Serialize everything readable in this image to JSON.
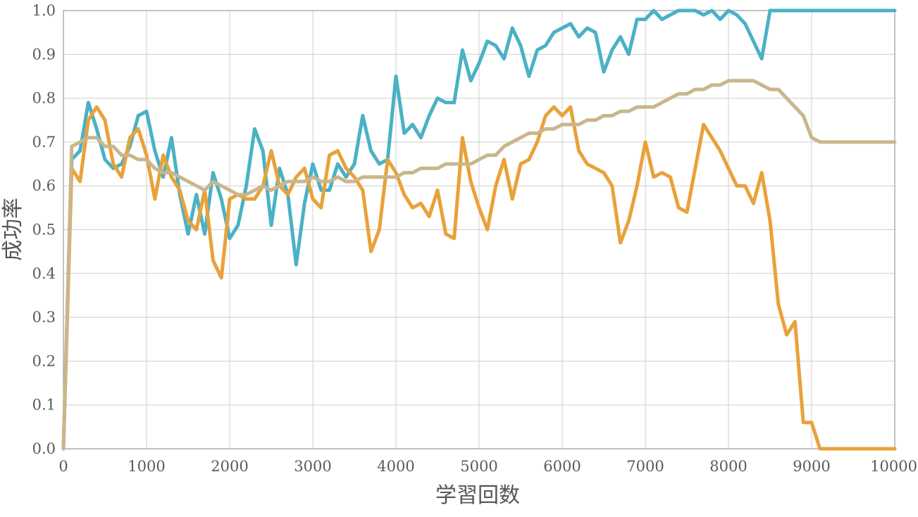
{
  "chart_data": {
    "type": "line",
    "xlabel": "学習回数",
    "ylabel": "成功率",
    "xlim": [
      0,
      10000
    ],
    "ylim": [
      0,
      1.0
    ],
    "x_ticks": [
      "0",
      "1000",
      "2000",
      "3000",
      "4000",
      "5000",
      "6000",
      "7000",
      "8000",
      "9000",
      "10000"
    ],
    "y_ticks": [
      "0.0",
      "0.1",
      "0.2",
      "0.3",
      "0.4",
      "0.5",
      "0.6",
      "0.7",
      "0.8",
      "0.9",
      "1.0"
    ],
    "grid": true,
    "series": [
      {
        "color": "#4bb1c5",
        "x": [
          0,
          100,
          200,
          300,
          400,
          500,
          600,
          700,
          800,
          900,
          1000,
          1100,
          1200,
          1300,
          1400,
          1500,
          1600,
          1700,
          1800,
          1900,
          2000,
          2100,
          2200,
          2300,
          2400,
          2500,
          2600,
          2700,
          2800,
          2900,
          3000,
          3100,
          3200,
          3300,
          3400,
          3500,
          3600,
          3700,
          3800,
          3900,
          4000,
          4100,
          4200,
          4300,
          4400,
          4500,
          4600,
          4700,
          4800,
          4900,
          5000,
          5100,
          5200,
          5300,
          5400,
          5500,
          5600,
          5700,
          5800,
          5900,
          6000,
          6100,
          6200,
          6300,
          6400,
          6500,
          6600,
          6700,
          6800,
          6900,
          7000,
          7100,
          7200,
          7300,
          7400,
          7500,
          7600,
          7700,
          7800,
          7900,
          8000,
          8100,
          8200,
          8300,
          8400,
          8500,
          8600,
          8700,
          8800,
          8900,
          9000,
          9100,
          9200,
          9300,
          9400,
          9500,
          9600,
          9700,
          9800,
          9900,
          10000
        ],
        "values": [
          0.0,
          0.66,
          0.68,
          0.79,
          0.73,
          0.66,
          0.64,
          0.65,
          0.69,
          0.76,
          0.77,
          0.68,
          0.62,
          0.71,
          0.58,
          0.49,
          0.58,
          0.49,
          0.63,
          0.57,
          0.48,
          0.51,
          0.6,
          0.73,
          0.68,
          0.51,
          0.64,
          0.58,
          0.42,
          0.56,
          0.65,
          0.59,
          0.59,
          0.65,
          0.62,
          0.65,
          0.76,
          0.68,
          0.65,
          0.66,
          0.85,
          0.72,
          0.74,
          0.71,
          0.76,
          0.8,
          0.79,
          0.79,
          0.91,
          0.84,
          0.88,
          0.93,
          0.92,
          0.89,
          0.96,
          0.92,
          0.85,
          0.91,
          0.92,
          0.95,
          0.96,
          0.97,
          0.94,
          0.96,
          0.95,
          0.86,
          0.91,
          0.94,
          0.9,
          0.98,
          0.98,
          1.0,
          0.98,
          0.99,
          1.0,
          1.0,
          1.0,
          0.99,
          1.0,
          0.98,
          1.0,
          0.99,
          0.97,
          0.93,
          0.89,
          1.0,
          1.0,
          1.0,
          1.0,
          1.0,
          1.0,
          1.0,
          1.0,
          1.0,
          1.0,
          1.0,
          1.0,
          1.0,
          1.0,
          1.0,
          1.0
        ]
      },
      {
        "color": "#e8a23a",
        "x": [
          0,
          100,
          200,
          300,
          400,
          500,
          600,
          700,
          800,
          900,
          1000,
          1100,
          1200,
          1300,
          1400,
          1500,
          1600,
          1700,
          1800,
          1900,
          2000,
          2100,
          2200,
          2300,
          2400,
          2500,
          2600,
          2700,
          2800,
          2900,
          3000,
          3100,
          3200,
          3300,
          3400,
          3500,
          3600,
          3700,
          3800,
          3900,
          4000,
          4100,
          4200,
          4300,
          4400,
          4500,
          4600,
          4700,
          4800,
          4900,
          5000,
          5100,
          5200,
          5300,
          5400,
          5500,
          5600,
          5700,
          5800,
          5900,
          6000,
          6100,
          6200,
          6300,
          6400,
          6500,
          6600,
          6700,
          6800,
          6900,
          7000,
          7100,
          7200,
          7300,
          7400,
          7500,
          7600,
          7700,
          7800,
          7900,
          8000,
          8100,
          8200,
          8300,
          8400,
          8500,
          8600,
          8700,
          8800,
          8900,
          9000,
          9100,
          9200,
          9300,
          9400,
          9500,
          9600,
          9700,
          9800,
          9900,
          10000
        ],
        "values": [
          0.0,
          0.64,
          0.61,
          0.75,
          0.78,
          0.75,
          0.65,
          0.62,
          0.71,
          0.73,
          0.67,
          0.57,
          0.67,
          0.62,
          0.59,
          0.52,
          0.5,
          0.59,
          0.43,
          0.39,
          0.57,
          0.58,
          0.57,
          0.57,
          0.6,
          0.68,
          0.6,
          0.58,
          0.62,
          0.64,
          0.57,
          0.55,
          0.67,
          0.68,
          0.64,
          0.62,
          0.59,
          0.45,
          0.5,
          0.66,
          0.63,
          0.58,
          0.55,
          0.56,
          0.53,
          0.59,
          0.49,
          0.48,
          0.71,
          0.61,
          0.55,
          0.5,
          0.6,
          0.66,
          0.57,
          0.65,
          0.66,
          0.7,
          0.76,
          0.78,
          0.76,
          0.78,
          0.68,
          0.65,
          0.64,
          0.63,
          0.6,
          0.47,
          0.52,
          0.6,
          0.7,
          0.62,
          0.63,
          0.62,
          0.55,
          0.54,
          0.64,
          0.74,
          0.71,
          0.68,
          0.64,
          0.6,
          0.6,
          0.56,
          0.63,
          0.52,
          0.33,
          0.26,
          0.29,
          0.06,
          0.06,
          0.0,
          0.0,
          0.0,
          0.0,
          0.0,
          0.0,
          0.0,
          0.0,
          0.0,
          0.0
        ]
      },
      {
        "color": "#c9b68c",
        "x": [
          0,
          100,
          200,
          300,
          400,
          500,
          600,
          700,
          800,
          900,
          1000,
          1100,
          1200,
          1300,
          1400,
          1500,
          1600,
          1700,
          1800,
          1900,
          2000,
          2100,
          2200,
          2300,
          2400,
          2500,
          2600,
          2700,
          2800,
          2900,
          3000,
          3100,
          3200,
          3300,
          3400,
          3500,
          3600,
          3700,
          3800,
          3900,
          4000,
          4100,
          4200,
          4300,
          4400,
          4500,
          4600,
          4700,
          4800,
          4900,
          5000,
          5100,
          5200,
          5300,
          5400,
          5500,
          5600,
          5700,
          5800,
          5900,
          6000,
          6100,
          6200,
          6300,
          6400,
          6500,
          6600,
          6700,
          6800,
          6900,
          7000,
          7100,
          7200,
          7300,
          7400,
          7500,
          7600,
          7700,
          7800,
          7900,
          8000,
          8100,
          8200,
          8300,
          8400,
          8500,
          8600,
          8700,
          8800,
          8900,
          9000,
          9100,
          9200,
          9300,
          9400,
          9500,
          9600,
          9700,
          9800,
          9900,
          10000
        ],
        "values": [
          0.0,
          0.69,
          0.7,
          0.71,
          0.71,
          0.69,
          0.69,
          0.67,
          0.67,
          0.66,
          0.66,
          0.64,
          0.63,
          0.63,
          0.62,
          0.61,
          0.6,
          0.59,
          0.61,
          0.6,
          0.59,
          0.58,
          0.58,
          0.59,
          0.6,
          0.59,
          0.6,
          0.61,
          0.61,
          0.61,
          0.62,
          0.61,
          0.61,
          0.62,
          0.61,
          0.61,
          0.62,
          0.62,
          0.62,
          0.62,
          0.62,
          0.63,
          0.63,
          0.64,
          0.64,
          0.64,
          0.65,
          0.65,
          0.65,
          0.65,
          0.66,
          0.67,
          0.67,
          0.69,
          0.7,
          0.71,
          0.72,
          0.72,
          0.73,
          0.73,
          0.74,
          0.74,
          0.74,
          0.75,
          0.75,
          0.76,
          0.76,
          0.77,
          0.77,
          0.78,
          0.78,
          0.78,
          0.79,
          0.8,
          0.81,
          0.81,
          0.82,
          0.82,
          0.83,
          0.83,
          0.84,
          0.84,
          0.84,
          0.84,
          0.83,
          0.82,
          0.82,
          0.8,
          0.78,
          0.76,
          0.71,
          0.7,
          0.7,
          0.7,
          0.7,
          0.7,
          0.7,
          0.7,
          0.7,
          0.7,
          0.7
        ]
      }
    ]
  }
}
